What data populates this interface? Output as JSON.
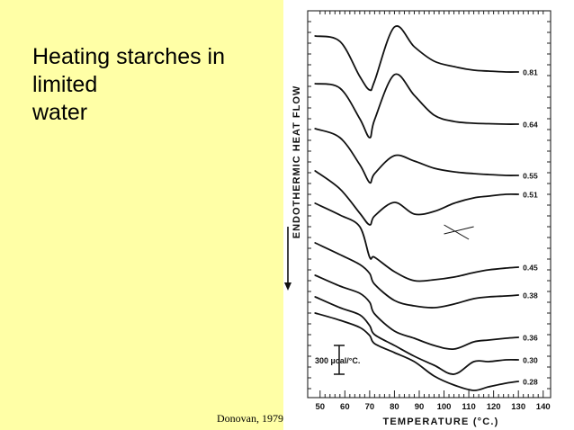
{
  "slide": {
    "title_lines": [
      "Heating starches in",
      "limited",
      "water"
    ],
    "citation": "Donovan, 1979",
    "background_color": "#ffffa6"
  },
  "chart_data": {
    "type": "line",
    "title": "",
    "xlabel": "TEMPERATURE (°C.)",
    "ylabel": "ENDOTHERMIC HEAT FLOW",
    "x_ticks": [
      50,
      60,
      70,
      80,
      90,
      100,
      110,
      120,
      130,
      140
    ],
    "xlim": [
      45,
      143
    ],
    "scale_bar_label": "300 µcal/°C.",
    "series": [
      {
        "name": "0.81",
        "curve_y": [
          10,
          16,
          55,
          70,
          60,
          0,
          22,
          38,
          44,
          48,
          49,
          50,
          50
        ]
      },
      {
        "name": "0.64",
        "curve_y": [
          10,
          15,
          49,
          70,
          50,
          0,
          23,
          45,
          52,
          54,
          54.5,
          55,
          55
        ]
      },
      {
        "name": "0.55",
        "curve_y": [
          10,
          20,
          50,
          70,
          60,
          40,
          46,
          54,
          58,
          60,
          61,
          62,
          62
        ]
      },
      {
        "name": "0.51",
        "curve_y": [
          10,
          30,
          57,
          70,
          60,
          45,
          58,
          55,
          46,
          40,
          38,
          36,
          36
        ]
      },
      {
        "name": "0.45",
        "curve_y": [
          10,
          23,
          36,
          70,
          70,
          86,
          96,
          95,
          92,
          87,
          84,
          82,
          81
        ]
      },
      {
        "name": "0.38",
        "curve_y": [
          10,
          23,
          34,
          44,
          56,
          74,
          80,
          82,
          78,
          72,
          70,
          69,
          68
        ]
      },
      {
        "name": "0.36",
        "curve_y": [
          10,
          22,
          30,
          40,
          53,
          72,
          80,
          88,
          92,
          84,
          82,
          80,
          79
        ]
      },
      {
        "name": "0.30",
        "curve_y": [
          10,
          22,
          30,
          42,
          52,
          64,
          76,
          86,
          96,
          82,
          82,
          80,
          80
        ]
      },
      {
        "name": "0.28",
        "curve_y": [
          10,
          18,
          26,
          35,
          44,
          54,
          64,
          80,
          90,
          96,
          92,
          88,
          86
        ]
      }
    ],
    "series_x": [
      48,
      58,
      66,
      70,
      72,
      80,
      88,
      96,
      104,
      112,
      118,
      125,
      130
    ],
    "grid": false,
    "legend": "none; each curve labeled at its right end"
  }
}
